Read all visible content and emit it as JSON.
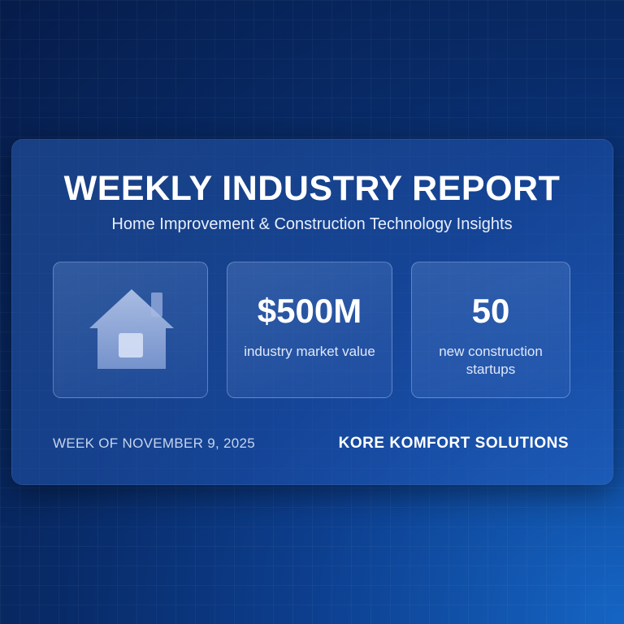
{
  "header": {
    "title": "WEEKLY INDUSTRY REPORT",
    "subtitle": "Home Improvement & Construction Technology Insights"
  },
  "tiles": [
    {
      "icon": "house-icon"
    },
    {
      "value": "$500M",
      "label": "industry market value"
    },
    {
      "value": "50",
      "label": "new construction startups"
    }
  ],
  "footer": {
    "date": "WEEK OF NOVEMBER 9, 2025",
    "company": "KORE KOMFORT SOLUTIONS"
  },
  "colors": {
    "background": "#082a66",
    "accent": "#1565c4",
    "text": "#ffffff"
  }
}
